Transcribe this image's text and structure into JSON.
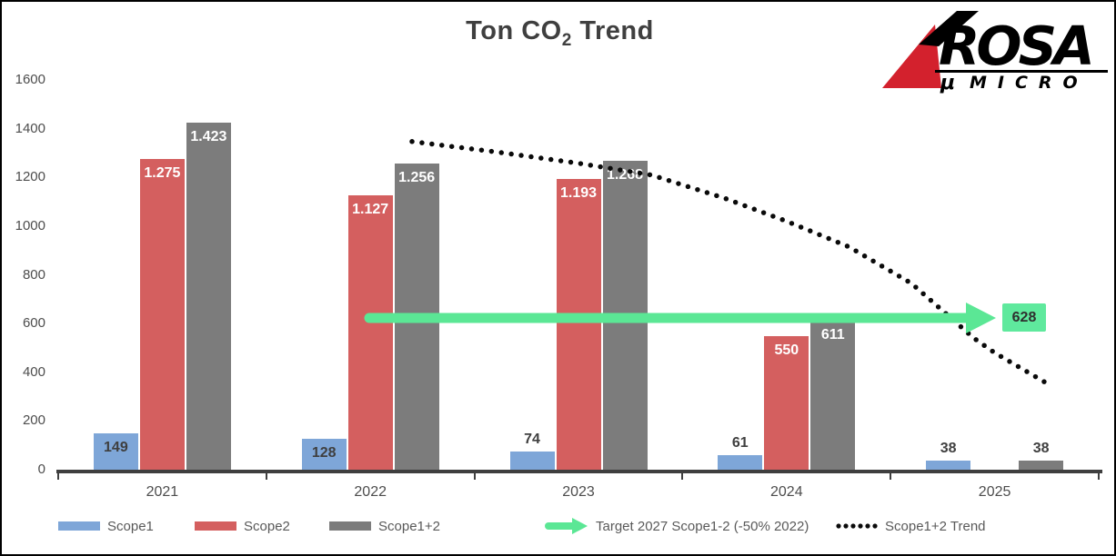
{
  "title": {
    "prefix": "Ton CO",
    "subscript": "2",
    "suffix": " Trend"
  },
  "logo": {
    "brand": "ROSA",
    "mu": "μ",
    "sub": "MICRO",
    "red": "#d3212d",
    "black": "#000000"
  },
  "chart_data": {
    "type": "bar",
    "title": "Ton CO2 Trend",
    "categories": [
      "2021",
      "2022",
      "2023",
      "2024",
      "2025"
    ],
    "series": [
      {
        "name": "Scope1",
        "color": "#7ea6d8",
        "values": [
          149,
          128,
          74,
          61,
          38
        ],
        "labels": [
          "149",
          "128",
          "74",
          "61",
          "38"
        ]
      },
      {
        "name": "Scope2",
        "color": "#d45f5f",
        "values": [
          1275,
          1127,
          1193,
          550,
          null
        ],
        "labels": [
          "1.275",
          "1.127",
          "1.193",
          "550",
          ""
        ]
      },
      {
        "name": "Scope1+2",
        "color": "#7c7c7c",
        "values": [
          1423,
          1256,
          1268,
          611,
          38
        ],
        "labels": [
          "1.423",
          "1.256",
          "1.268",
          "611",
          "38"
        ]
      }
    ],
    "y_axis": {
      "min": 0,
      "max": 1600,
      "step": 200,
      "ticks": [
        1600,
        1400,
        1200,
        1000,
        800,
        600,
        400,
        200,
        0
      ]
    },
    "target": {
      "value": 628,
      "value_label": "628",
      "legend_label": "Target 2027 Scope1-2 (-50% 2022)",
      "color": "#5be795",
      "badge_color": "#5fe99d"
    },
    "trend": {
      "legend_label": "Scope1+2 Trend",
      "color": "#0a0a0a",
      "samples_category_value": [
        [
          1.2,
          1347
        ],
        [
          1.6,
          1305
        ],
        [
          2.0,
          1258
        ],
        [
          2.35,
          1210
        ],
        [
          2.7,
          1115
        ],
        [
          3.0,
          1020
        ],
        [
          3.3,
          915
        ],
        [
          3.6,
          765
        ],
        [
          3.9,
          540
        ],
        [
          4.0,
          480
        ],
        [
          4.25,
          355
        ]
      ]
    },
    "grid": false,
    "legend_position": "bottom",
    "inside_label_colors": {
      "Scope1": "#3f3f3f",
      "Scope2": "#ffffff",
      "Scope1+2": "#ffffff"
    },
    "outside_label_color": "#3f3f3f"
  },
  "legend": {
    "items": [
      {
        "label": "Scope1",
        "type": "swatch",
        "color": "#7ea6d8"
      },
      {
        "label": "Scope2",
        "type": "swatch",
        "color": "#d45f5f"
      },
      {
        "label": "Scope1+2",
        "type": "swatch",
        "color": "#7c7c7c"
      },
      {
        "label": "Target 2027 Scope1-2 (-50% 2022)",
        "type": "arrow",
        "color": "#5be795"
      },
      {
        "label": "Scope1+2 Trend",
        "type": "dotted",
        "color": "#0a0a0a"
      }
    ]
  }
}
